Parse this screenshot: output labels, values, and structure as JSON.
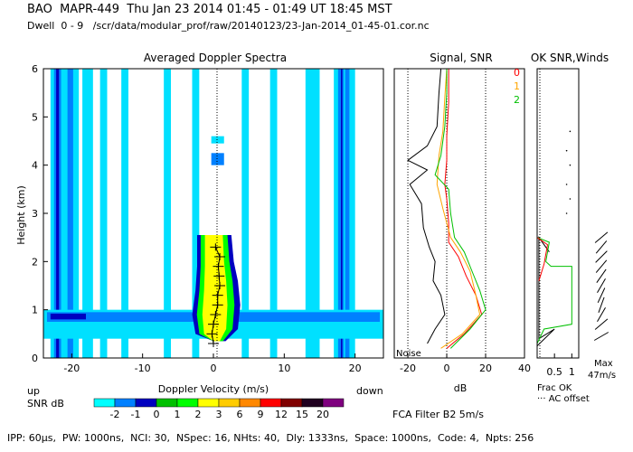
{
  "header": {
    "line1": "BAO  MAPR-449  Thu Jan 23 2014 01:45 - 01:49 UT 18:45 MST",
    "line2": "Dwell  0 - 9   /scr/data/modular_prof/raw/20140123/23-Jan-2014_01-45-01.cor.nc"
  },
  "footer": {
    "params": "IPP: 60µs,  PW: 1000ns,  NCI: 30,  NSpec: 16, NHts: 40,  Dly: 1333ns,  Space: 1000ns,  Code: 4,  Npts: 256"
  },
  "colors": {
    "snr_scale": [
      "#00ffff",
      "#0080ff",
      "#0000c0",
      "#00c000",
      "#00ff00",
      "#ffff00",
      "#ffcc00",
      "#ff8800",
      "#ff0000",
      "#800000",
      "#200020",
      "#7f007f"
    ],
    "background_field": "#00e0ff",
    "snr_black": "#000000",
    "snr_orange": "#ffa500",
    "snr_red": "#ff0000",
    "snr_green": "#00c000"
  },
  "chart_data": [
    {
      "type": "heatmap",
      "title": "Averaged Doppler Spectra",
      "xlabel": "Doppler Velocity (m/s)",
      "ylabel": "Height (km)",
      "xlim": [
        -24,
        24
      ],
      "ylim": [
        0,
        6
      ],
      "xticks": [
        "-20",
        "-10",
        "0",
        "10",
        "20"
      ],
      "yticks": [
        "0",
        "1",
        "2",
        "3",
        "4",
        "5",
        "6"
      ],
      "x_left_label": "up",
      "x_right_label": "down",
      "colorbar": {
        "label": "SNR dB",
        "ticks": [
          "-2",
          "-1",
          "0",
          "1",
          "2",
          "3",
          "6",
          "9",
          "12",
          "15",
          "20"
        ]
      },
      "mean_velocity_profile": [
        {
          "h": 0.3,
          "v": 0.0
        },
        {
          "h": 0.5,
          "v": -0.2
        },
        {
          "h": 0.7,
          "v": 0.0
        },
        {
          "h": 0.9,
          "v": 0.3
        },
        {
          "h": 1.1,
          "v": 0.6
        },
        {
          "h": 1.3,
          "v": 0.6
        },
        {
          "h": 1.5,
          "v": 0.9
        },
        {
          "h": 1.7,
          "v": 0.8
        },
        {
          "h": 1.9,
          "v": 0.7
        },
        {
          "h": 2.1,
          "v": 0.9
        },
        {
          "h": 2.3,
          "v": 0.3
        }
      ]
    },
    {
      "type": "line",
      "title": "Signal, SNR",
      "xlabel": "dB",
      "xticks": [
        "-20",
        "0",
        "20",
        "40"
      ],
      "xlim": [
        -27,
        40
      ],
      "ylim": [
        0,
        6
      ],
      "noise_label": "Noise",
      "legend": [
        "0",
        "1",
        "2"
      ],
      "series": [
        {
          "name": "Signal",
          "color": "#000000",
          "points": [
            [
              -10,
              0.3
            ],
            [
              -6,
              0.6
            ],
            [
              -1,
              0.9
            ],
            [
              -3,
              1.3
            ],
            [
              -7,
              1.6
            ],
            [
              -6,
              2.0
            ],
            [
              -9,
              2.3
            ],
            [
              -12,
              2.7
            ],
            [
              -13,
              3.2
            ],
            [
              -19,
              3.6
            ],
            [
              -10,
              3.9
            ],
            [
              -20,
              4.1
            ],
            [
              -10,
              4.4
            ],
            [
              -5,
              4.8
            ],
            [
              -4,
              5.5
            ],
            [
              -3,
              6.0
            ]
          ]
        },
        {
          "name": "0",
          "color": "#ff0000",
          "points": [
            [
              0,
              0.2
            ],
            [
              9,
              0.5
            ],
            [
              18,
              0.9
            ],
            [
              15,
              1.3
            ],
            [
              10,
              1.7
            ],
            [
              6,
              2.1
            ],
            [
              1,
              2.4
            ],
            [
              1,
              2.8
            ],
            [
              0,
              3.3
            ],
            [
              -1,
              3.6
            ],
            [
              0,
              4.1
            ],
            [
              0,
              4.6
            ],
            [
              1,
              5.3
            ],
            [
              1,
              6.0
            ]
          ]
        },
        {
          "name": "1",
          "color": "#ffa500",
          "points": [
            [
              -3,
              0.2
            ],
            [
              8,
              0.5
            ],
            [
              17,
              0.9
            ],
            [
              15,
              1.3
            ],
            [
              12,
              1.8
            ],
            [
              7,
              2.2
            ],
            [
              2,
              2.5
            ],
            [
              -2,
              3.1
            ],
            [
              -5,
              3.6
            ],
            [
              -4,
              4.2
            ],
            [
              -2,
              4.7
            ],
            [
              -1,
              5.4
            ],
            [
              0,
              6.0
            ]
          ]
        },
        {
          "name": "2",
          "color": "#00c000",
          "points": [
            [
              2,
              0.2
            ],
            [
              12,
              0.6
            ],
            [
              20,
              1.0
            ],
            [
              17,
              1.4
            ],
            [
              13,
              1.8
            ],
            [
              9,
              2.2
            ],
            [
              4,
              2.5
            ],
            [
              2,
              3.0
            ],
            [
              1,
              3.5
            ],
            [
              -6,
              3.8
            ],
            [
              -3,
              4.2
            ],
            [
              -1,
              4.8
            ],
            [
              0,
              5.5
            ],
            [
              0,
              6.0
            ]
          ]
        }
      ]
    },
    {
      "type": "line",
      "title": "OK SNR,Winds",
      "xticks": [
        "0.5",
        "1"
      ],
      "xlim": [
        0,
        1.2
      ],
      "ylim": [
        0,
        6
      ],
      "frac_label": "Frac OK",
      "offset_label": "··· AC offset",
      "max_label": "Max",
      "max_value": "47m/s",
      "series": [
        {
          "name": "Frac OK",
          "color": "#000000",
          "points": [
            [
              0.0,
              0.25
            ],
            [
              0.5,
              0.6
            ],
            [
              0.05,
              0.4
            ],
            [
              0.05,
              2.5
            ],
            [
              0.35,
              2.2
            ]
          ]
        },
        {
          "name": "SNR OK",
          "color": "#00c000",
          "points": [
            [
              0.0,
              6.0
            ],
            [
              0.0,
              2.5
            ],
            [
              0.35,
              2.4
            ],
            [
              0.25,
              2.0
            ],
            [
              0.4,
              1.9
            ],
            [
              1.0,
              1.9
            ],
            [
              1.0,
              0.7
            ],
            [
              0.2,
              0.6
            ],
            [
              0.0,
              0.3
            ]
          ]
        },
        {
          "name": "Winds OK",
          "color": "#ff0000",
          "points": [
            [
              0.0,
              2.5
            ],
            [
              0.3,
              2.35
            ],
            [
              0.2,
              1.95
            ],
            [
              0.05,
              1.6
            ]
          ]
        }
      ]
    }
  ]
}
